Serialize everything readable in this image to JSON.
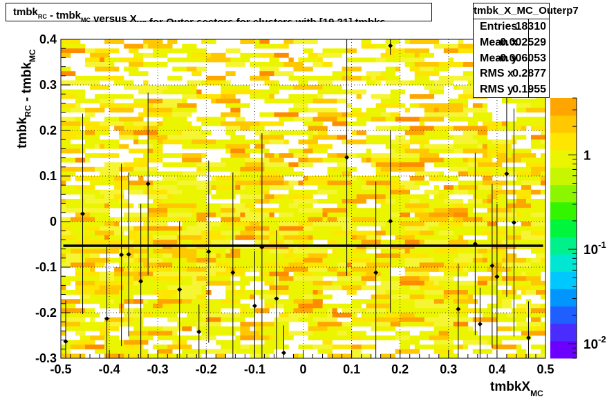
{
  "title": {
    "parts": [
      {
        "t": "tmbk",
        "sub": "RC"
      },
      {
        "t": " - tmbk",
        "sub": "MC"
      },
      {
        "t": " versus X",
        "sub": "MC"
      },
      {
        "t": " for Outer sectors for clusters with [19,21] tmbks",
        "sub": ""
      }
    ]
  },
  "stats": {
    "name": "tmbk_X_MC_Outerp7",
    "rows": [
      {
        "key": "Entries",
        "value": "18310"
      },
      {
        "key": "Mean x",
        "value": "0.002529"
      },
      {
        "key": "Mean y",
        "value": "-0.006053"
      },
      {
        "key": "RMS x",
        "value": "0.2877"
      },
      {
        "key": "RMS y",
        "value": "0.1955"
      }
    ]
  },
  "chart_data": {
    "type": "heatmap",
    "xlabel": {
      "main": "tmbkX",
      "sub": "MC"
    },
    "ylabel": {
      "parts": [
        {
          "t": "tmbk",
          "sub": "RC"
        },
        {
          "t": " - tmbk",
          "sub": "MC"
        }
      ]
    },
    "xlim": [
      -0.5,
      0.5
    ],
    "ylim": [
      -0.3,
      0.4
    ],
    "xticks": [
      -0.5,
      -0.4,
      -0.3,
      -0.2,
      -0.1,
      0,
      0.1,
      0.2,
      0.3,
      0.4,
      0.5
    ],
    "xtick_labels": [
      "-0.5",
      "-0.4",
      "-0.3",
      "-0.2",
      "-0.1",
      "0",
      "0.1",
      "0.2",
      "0.3",
      "0.4",
      "0.5"
    ],
    "yticks": [
      -0.3,
      -0.2,
      -0.1,
      0,
      0.1,
      0.2,
      0.3,
      0.4
    ],
    "ytick_labels": [
      "-0.3",
      "-0.2",
      "-0.1",
      "0",
      "0.1",
      "0.2",
      "0.3",
      "0.4"
    ],
    "grid": true,
    "log_z": true,
    "z_range": [
      0.007,
      4
    ],
    "colorbar_ticks": [
      {
        "value": 1,
        "label": "1",
        "exp": ""
      },
      {
        "value": 0.1,
        "label": "10",
        "exp": "-1"
      },
      {
        "value": 0.01,
        "label": "10",
        "exp": "-2"
      }
    ],
    "palette": [
      "#6b00ff",
      "#4a2cff",
      "#1f5eff",
      "#0095ff",
      "#00c8ff",
      "#00e6d2",
      "#00f08c",
      "#00f53c",
      "#33f500",
      "#8cf500",
      "#c8f500",
      "#ecf500",
      "#ffe600",
      "#ffc800",
      "#ffa500"
    ],
    "mean_line": {
      "y": -0.053
    },
    "profile_points": [
      {
        "x": -0.49,
        "y": -0.263,
        "err": 0.09
      },
      {
        "x": -0.455,
        "y": 0.017,
        "err": 0.22
      },
      {
        "x": -0.405,
        "y": -0.213,
        "err": 0.16
      },
      {
        "x": -0.375,
        "y": -0.073,
        "err": 0.2
      },
      {
        "x": -0.36,
        "y": -0.072,
        "err": 0.18
      },
      {
        "x": -0.335,
        "y": -0.131,
        "err": 0.17
      },
      {
        "x": -0.32,
        "y": 0.083,
        "err": 0.2
      },
      {
        "x": -0.255,
        "y": -0.149,
        "err": 0.15
      },
      {
        "x": -0.215,
        "y": -0.242,
        "err": 0.06
      },
      {
        "x": -0.195,
        "y": -0.066,
        "err": 0.2
      },
      {
        "x": -0.145,
        "y": -0.112,
        "err": 0.22
      },
      {
        "x": -0.1,
        "y": -0.185,
        "err": 0.12
      },
      {
        "x": -0.085,
        "y": -0.056,
        "err": 0.25
      },
      {
        "x": -0.055,
        "y": -0.169,
        "err": 0.15
      },
      {
        "x": -0.04,
        "y": -0.288,
        "err": 0.06
      },
      {
        "x": 0.09,
        "y": 0.141,
        "err": 0.26
      },
      {
        "x": 0.15,
        "y": -0.112,
        "err": 0.2
      },
      {
        "x": 0.18,
        "y": 0.386,
        "err": 0.02
      },
      {
        "x": 0.18,
        "y": 0.001,
        "err": 0.2
      },
      {
        "x": 0.32,
        "y": -0.192,
        "err": 0.1
      },
      {
        "x": 0.355,
        "y": -0.049,
        "err": 0.2
      },
      {
        "x": 0.365,
        "y": -0.225,
        "err": 0.08
      },
      {
        "x": 0.39,
        "y": -0.097,
        "err": 0.18
      },
      {
        "x": 0.4,
        "y": -0.121,
        "err": 0.16
      },
      {
        "x": 0.42,
        "y": 0.105,
        "err": 0.27
      },
      {
        "x": 0.435,
        "y": -0.002,
        "err": 0.25
      },
      {
        "x": 0.465,
        "y": -0.255,
        "err": 0.08
      }
    ]
  }
}
